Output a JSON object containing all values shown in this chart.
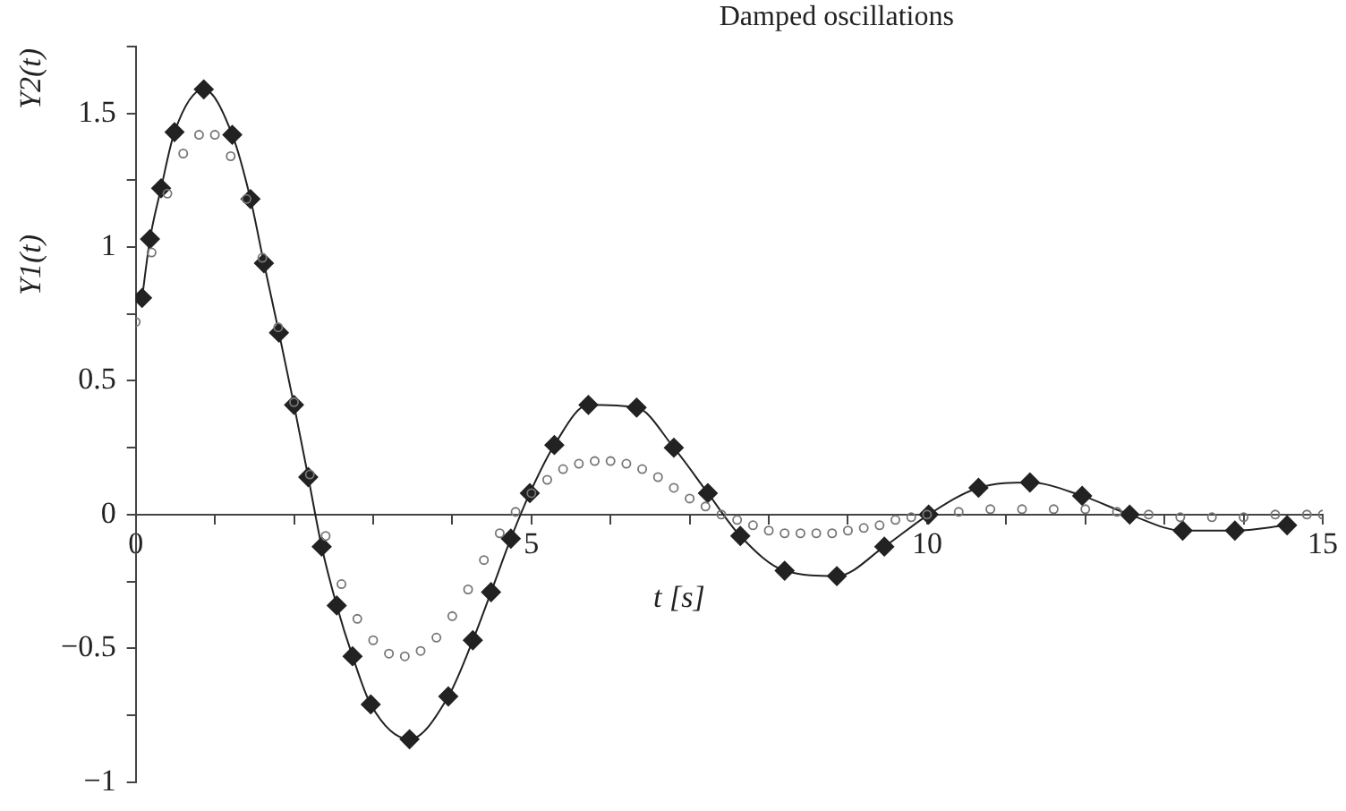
{
  "chart_data": {
    "type": "line",
    "title": "Damped oscillations",
    "xlabel": "t [s]",
    "ylabel": "Y1(t)",
    "annotations": [
      "Y2(t)"
    ],
    "xlim": [
      0,
      15
    ],
    "ylim": [
      -1,
      1.75
    ],
    "xticks": [
      0,
      {
        "value": 1,
        "label": null
      },
      {
        "value": 2,
        "label": null
      },
      {
        "value": 3,
        "label": null
      },
      {
        "value": 4,
        "label": null
      },
      5,
      {
        "value": 6,
        "label": null
      },
      {
        "value": 7,
        "label": null
      },
      {
        "value": 8,
        "label": null
      },
      {
        "value": 9,
        "label": null
      },
      10,
      {
        "value": 11,
        "label": null
      },
      {
        "value": 12,
        "label": null
      },
      {
        "value": 13,
        "label": null
      },
      {
        "value": 14,
        "label": null
      },
      15
    ],
    "yticks": [
      {
        "value": -1,
        "label": "−1"
      },
      {
        "value": -0.75,
        "label": null
      },
      {
        "value": -0.5,
        "label": "−0.5"
      },
      {
        "value": -0.25,
        "label": null
      },
      0,
      {
        "value": 0.25,
        "label": null
      },
      0.5,
      {
        "value": 0.75,
        "label": null
      },
      1,
      {
        "value": 1.25,
        "label": null
      },
      1.5,
      {
        "value": 1.75,
        "label": null
      }
    ],
    "series": [
      {
        "type": "line",
        "marker": "diamond",
        "color": "#222222",
        "x": [
          0.08,
          0.18,
          0.32,
          0.49,
          0.86,
          1.22,
          1.45,
          1.62,
          1.81,
          2.0,
          2.18,
          2.35,
          2.54,
          2.74,
          2.97,
          3.46,
          3.95,
          4.26,
          4.49,
          4.74,
          4.98,
          5.29,
          5.72,
          6.33,
          6.8,
          7.23,
          7.64,
          8.2,
          8.86,
          9.46,
          10.02,
          10.65,
          11.3,
          11.96,
          12.56,
          13.23,
          13.89,
          14.55
        ],
        "values": [
          0.81,
          1.03,
          1.22,
          1.43,
          1.59,
          1.42,
          1.18,
          0.94,
          0.68,
          0.41,
          0.14,
          -0.12,
          -0.34,
          -0.53,
          -0.71,
          -0.84,
          -0.68,
          -0.47,
          -0.29,
          -0.09,
          0.08,
          0.26,
          0.41,
          0.4,
          0.25,
          0.08,
          -0.08,
          -0.21,
          -0.23,
          -0.12,
          0,
          0.1,
          0.12,
          0.07,
          0,
          -0.06,
          -0.06,
          -0.04
        ]
      },
      {
        "type": "scatter",
        "marker": "circle",
        "color": "#777777",
        "x": [
          0,
          0.2,
          0.4,
          0.6,
          0.8,
          1.0,
          1.2,
          1.4,
          1.6,
          1.8,
          2.0,
          2.2,
          2.4,
          2.6,
          2.8,
          3.0,
          3.2,
          3.4,
          3.6,
          3.8,
          4.0,
          4.2,
          4.4,
          4.6,
          4.8,
          5.0,
          5.2,
          5.4,
          5.6,
          5.8,
          6.0,
          6.2,
          6.4,
          6.6,
          6.8,
          7.0,
          7.2,
          7.4,
          7.6,
          7.8,
          8.0,
          8.2,
          8.4,
          8.6,
          8.8,
          9.0,
          9.2,
          9.4,
          9.6,
          9.8,
          10.0,
          10.4,
          10.8,
          11.2,
          11.6,
          12.0,
          12.4,
          12.8,
          13.2,
          13.6,
          14.0,
          14.4,
          14.8,
          15.0
        ],
        "values": [
          0.72,
          0.98,
          1.2,
          1.35,
          1.42,
          1.42,
          1.34,
          1.18,
          0.96,
          0.7,
          0.42,
          0.15,
          -0.08,
          -0.26,
          -0.39,
          -0.47,
          -0.52,
          -0.53,
          -0.51,
          -0.46,
          -0.38,
          -0.28,
          -0.17,
          -0.07,
          0.01,
          0.08,
          0.13,
          0.17,
          0.19,
          0.2,
          0.2,
          0.19,
          0.17,
          0.14,
          0.1,
          0.06,
          0.03,
          0,
          -0.02,
          -0.04,
          -0.06,
          -0.07,
          -0.07,
          -0.07,
          -0.07,
          -0.06,
          -0.05,
          -0.04,
          -0.02,
          -0.01,
          0,
          0.01,
          0.02,
          0.02,
          0.02,
          0.02,
          0.01,
          0,
          -0.01,
          -0.01,
          -0.01,
          0,
          0,
          0
        ]
      }
    ]
  }
}
